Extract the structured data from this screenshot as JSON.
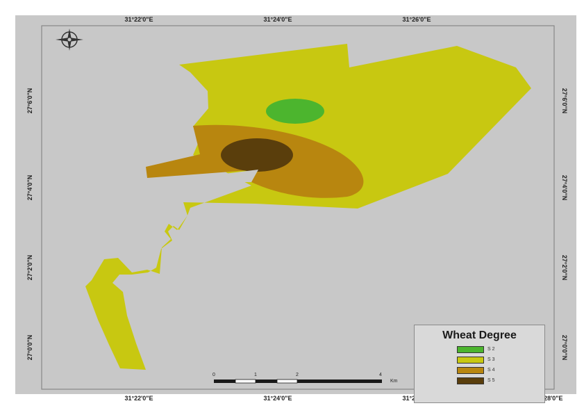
{
  "map": {
    "background_color": "#c8c8c8",
    "frame_color": "#ffffff",
    "coords_top": [
      "31°22'0\"E",
      "31°24'0\"E",
      "31°26'0\"E"
    ],
    "coords_bottom": [
      "31°22'0\"E",
      "31°24'0\"E",
      "31°26'0\"E",
      "31°28'0\"E"
    ],
    "coords_left": [
      "27°6'0\"N",
      "27°4'0\"N",
      "27°2'0\"N",
      "27°0'0\"N"
    ],
    "coords_right": [
      "27°6'0\"N",
      "27°4'0\"N",
      "27°2'0\"N",
      "27°0'0\"N"
    ]
  },
  "zones": [
    {
      "name": "S 2",
      "color": "#4cb52e"
    },
    {
      "name": "S 3",
      "color": "#c8c811"
    },
    {
      "name": "S 4",
      "color": "#b8860f"
    },
    {
      "name": "S 5",
      "color": "#5a3e0c"
    }
  ],
  "legend": {
    "title": "Wheat Degree",
    "items": [
      {
        "label": "S 2",
        "color": "#4cb52e"
      },
      {
        "label": "S 3",
        "color": "#c8c811"
      },
      {
        "label": "S 4",
        "color": "#b8860f"
      },
      {
        "label": "S 5",
        "color": "#5a3e0c"
      }
    ]
  },
  "scale_bar": {
    "labels": [
      "0",
      "1",
      "2",
      "4"
    ],
    "unit": "Km"
  },
  "north_arrow": {
    "icon": "compass-rose-icon"
  }
}
